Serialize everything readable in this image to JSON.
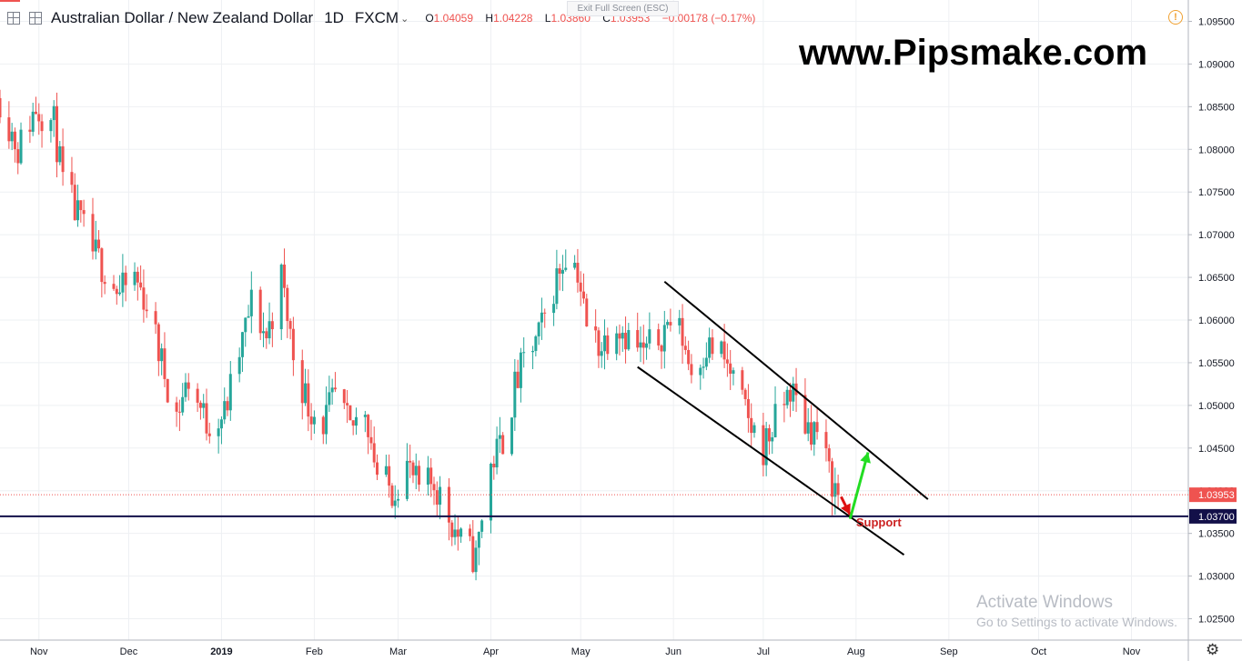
{
  "header": {
    "symbol": "Australian Dollar / New Zealand Dollar",
    "interval": "1D",
    "exchange": "FXCM",
    "ohlc": [
      {
        "key": "O",
        "value": "1.04059"
      },
      {
        "key": "H",
        "value": "1.04228"
      },
      {
        "key": "L",
        "value": "1.03860"
      },
      {
        "key": "C",
        "value": "1.03953"
      }
    ],
    "change": "−0.00178 (−0.17%)"
  },
  "exit_fullscreen": "Exit Full Screen (ESC)",
  "watermark": "www.Pipsmake.com",
  "activate_windows": {
    "title": "Activate Windows",
    "subtitle": "Go to Settings to activate Windows."
  },
  "colors": {
    "up": "#26a69a",
    "down": "#ef5350",
    "support": "#131049",
    "channel": "#000000",
    "arrow_up": "#22dd22",
    "arrow_down": "#dd1111",
    "support_text": "#cc2222"
  },
  "chart_data": {
    "type": "candlestick",
    "ylim": [
      1.0225,
      1.0975
    ],
    "y_ticks": [
      "1.02500",
      "1.03000",
      "1.03500",
      "1.04000",
      "1.04500",
      "1.05000",
      "1.05500",
      "1.06000",
      "1.06500",
      "1.07000",
      "1.07500",
      "1.08000",
      "1.08500",
      "1.09000",
      "1.09500"
    ],
    "x_labels": [
      {
        "label": "Nov",
        "date": "2018-11-01"
      },
      {
        "label": "Dec",
        "date": "2018-12-01"
      },
      {
        "label": "2019",
        "date": "2019-01-01"
      },
      {
        "label": "Feb",
        "date": "2019-02-01"
      },
      {
        "label": "Mar",
        "date": "2019-03-01"
      },
      {
        "label": "Apr",
        "date": "2019-04-01"
      },
      {
        "label": "May",
        "date": "2019-05-01"
      },
      {
        "label": "Jun",
        "date": "2019-06-01"
      },
      {
        "label": "Jul",
        "date": "2019-07-01"
      },
      {
        "label": "Aug",
        "date": "2019-08-01"
      },
      {
        "label": "Sep",
        "date": "2019-09-01"
      },
      {
        "label": "Oct",
        "date": "2019-10-01"
      },
      {
        "label": "Nov",
        "date": "2019-11-01"
      }
    ],
    "date_range": [
      "2018-10-19",
      "2019-11-20"
    ],
    "path": [
      [
        "2018-10-19",
        1.086
      ],
      [
        "2018-10-25",
        1.08
      ],
      [
        "2018-10-31",
        1.085
      ],
      [
        "2018-11-06",
        1.083
      ],
      [
        "2018-11-09",
        1.076
      ],
      [
        "2018-11-14",
        1.072
      ],
      [
        "2018-11-19",
        1.068
      ],
      [
        "2018-11-23",
        1.066
      ],
      [
        "2018-11-28",
        1.063
      ],
      [
        "2018-12-03",
        1.065
      ],
      [
        "2018-12-07",
        1.062
      ],
      [
        "2018-12-12",
        1.055
      ],
      [
        "2018-12-17",
        1.049
      ],
      [
        "2018-12-21",
        1.053
      ],
      [
        "2018-12-27",
        1.048
      ],
      [
        "2019-01-02",
        1.049
      ],
      [
        "2019-01-07",
        1.056
      ],
      [
        "2019-01-11",
        1.062
      ],
      [
        "2019-01-16",
        1.058
      ],
      [
        "2019-01-21",
        1.065
      ],
      [
        "2019-01-25",
        1.056
      ],
      [
        "2019-01-30",
        1.05
      ],
      [
        "2019-02-04",
        1.048
      ],
      [
        "2019-02-08",
        1.051
      ],
      [
        "2019-02-13",
        1.047
      ],
      [
        "2019-02-18",
        1.05
      ],
      [
        "2019-02-22",
        1.042
      ],
      [
        "2019-02-27",
        1.04
      ],
      [
        "2019-03-04",
        1.043
      ],
      [
        "2019-03-08",
        1.04
      ],
      [
        "2019-03-13",
        1.041
      ],
      [
        "2019-03-18",
        1.037
      ],
      [
        "2019-03-22",
        1.034
      ],
      [
        "2019-03-27",
        1.032
      ],
      [
        "2019-03-29",
        1.037
      ],
      [
        "2019-04-01",
        1.043
      ],
      [
        "2019-04-05",
        1.046
      ],
      [
        "2019-04-09",
        1.052
      ],
      [
        "2019-04-12",
        1.055
      ],
      [
        "2019-04-17",
        1.058
      ],
      [
        "2019-04-23",
        1.065
      ],
      [
        "2019-04-26",
        1.068
      ],
      [
        "2019-04-30",
        1.066
      ],
      [
        "2019-05-03",
        1.059
      ],
      [
        "2019-05-08",
        1.057
      ],
      [
        "2019-05-13",
        1.06
      ],
      [
        "2019-05-17",
        1.058
      ],
      [
        "2019-05-22",
        1.056
      ],
      [
        "2019-05-27",
        1.058
      ],
      [
        "2019-05-31",
        1.06
      ],
      [
        "2019-06-04",
        1.058
      ],
      [
        "2019-06-07",
        1.054
      ],
      [
        "2019-06-12",
        1.057
      ],
      [
        "2019-06-17",
        1.056
      ],
      [
        "2019-06-21",
        1.053
      ],
      [
        "2019-06-26",
        1.048
      ],
      [
        "2019-07-01",
        1.045
      ],
      [
        "2019-07-05",
        1.048
      ],
      [
        "2019-07-10",
        1.052
      ],
      [
        "2019-07-15",
        1.048
      ],
      [
        "2019-07-19",
        1.047
      ],
      [
        "2019-07-23",
        1.042
      ],
      [
        "2019-07-26",
        1.0395
      ]
    ],
    "price_labels": [
      {
        "value": 1.03953,
        "label": "1.03953",
        "color": "#ef5350",
        "line": "dotted"
      },
      {
        "value": 1.037,
        "label": "1.03700",
        "color": "#131049",
        "line": "solid"
      }
    ],
    "channel": {
      "upper": [
        [
          "2019-05-29",
          1.0645
        ],
        [
          "2019-08-25",
          1.039
        ]
      ],
      "lower": [
        [
          "2019-05-20",
          1.0545
        ],
        [
          "2019-08-17",
          1.0325
        ]
      ]
    },
    "annotations": [
      {
        "type": "arrow",
        "color": "red",
        "from": [
          "2019-07-27",
          1.0393
        ],
        "to": [
          "2019-07-30",
          1.0372
        ]
      },
      {
        "type": "arrow",
        "color": "green",
        "from": [
          "2019-07-30",
          1.0367
        ],
        "to": [
          "2019-08-05",
          1.0445
        ]
      },
      {
        "type": "text",
        "text": "Support",
        "at": [
          "2019-08-01",
          1.0358
        ]
      }
    ]
  }
}
